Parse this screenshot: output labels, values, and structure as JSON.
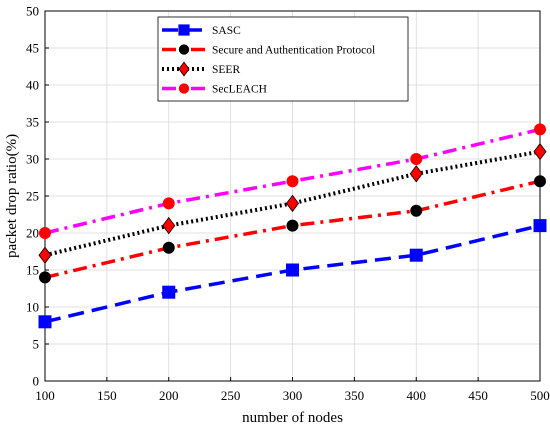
{
  "chart_data": {
    "type": "line",
    "xlabel": "number of nodes",
    "ylabel": "packet drop ratio(%)",
    "xlim": [
      100,
      500
    ],
    "ylim": [
      0,
      50
    ],
    "xticks": [
      100,
      150,
      200,
      250,
      300,
      350,
      400,
      450,
      500
    ],
    "yticks": [
      0,
      5,
      10,
      15,
      20,
      25,
      30,
      35,
      40,
      45,
      50
    ],
    "grid": true,
    "legend_position": "top-center",
    "x": [
      100,
      200,
      300,
      400,
      500
    ],
    "series": [
      {
        "name": "SASC",
        "values": [
          8,
          12,
          15,
          17,
          21
        ],
        "color": "#0000ff",
        "line_style": "dashed",
        "marker": "square",
        "marker_color": "#0000ff"
      },
      {
        "name": "Secure and Authentication Protocol",
        "values": [
          14,
          18,
          21,
          23,
          27
        ],
        "color": "#ff0000",
        "line_style": "dash-dot",
        "marker": "circle",
        "marker_color": "#000000"
      },
      {
        "name": "SEER",
        "values": [
          17,
          21,
          24,
          28,
          31
        ],
        "color": "#000000",
        "line_style": "dotted",
        "marker": "diamond",
        "marker_color": "#ff0000"
      },
      {
        "name": "SecLEACH",
        "values": [
          20,
          24,
          27,
          30,
          34
        ],
        "color": "#ff00ff",
        "line_style": "dash-dot",
        "marker": "circle",
        "marker_color": "#ff0000"
      }
    ]
  }
}
